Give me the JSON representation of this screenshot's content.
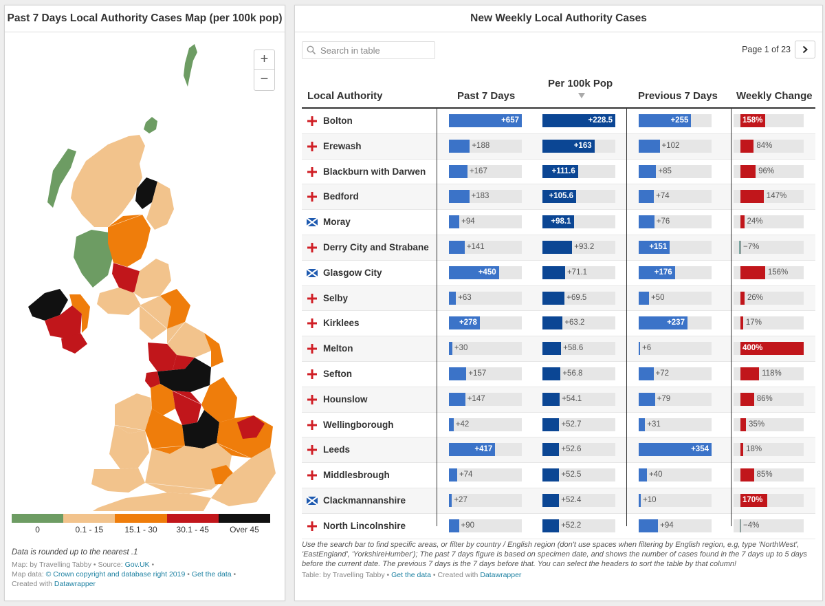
{
  "left_panel": {
    "title": "Past 7 Days Local Authority Cases Map (per 100k pop)",
    "zoom_in": "+",
    "zoom_out": "−",
    "legend": [
      {
        "label": "0",
        "color": "#6d9c63"
      },
      {
        "label": "0.1 - 15",
        "color": "#f2c38c"
      },
      {
        "label": "15.1 - 30",
        "color": "#ef7d0b"
      },
      {
        "label": "30.1 - 45",
        "color": "#c1161b"
      },
      {
        "label": "Over 45",
        "color": "#111111"
      }
    ],
    "note": "Data is rounded up to the nearest .1",
    "credit_map_by": "Map: by Travelling Tabby • Source: ",
    "credit_source_link": "Gov.UK",
    "credit_sep": " •",
    "credit_mapdata_prefix": "Map data: ",
    "credit_mapdata_link": "© Crown copyright and database right 2019",
    "credit_dot1": " • ",
    "credit_getdata": "Get the data",
    "credit_dot2": " •",
    "credit_created": "Created with ",
    "credit_datawrapper": "Datawrapper"
  },
  "right_panel": {
    "title": "New Weekly Local Authority Cases",
    "search_placeholder": "Search in table",
    "page_label": "Page 1 of 23",
    "next_icon": "chevron-right-icon",
    "description": "Use the search bar to find specific areas, or filter by country / English region (don't use spaces when filtering by English region, e.g, type 'NorthWest', 'EastEngland', 'YorkshireHumber'); The past 7 days figure is based on specimen date, and shows the number of cases found in the 7 days up to 5 days before the current date. The previous 7 days is the 7 days before that. You can select the headers to sort the table by that column!",
    "credit_table": "Table: by Travelling Tabby • ",
    "credit_getdata": "Get the data",
    "credit_dot": " • Created with ",
    "credit_datawrapper": "Datawrapper"
  },
  "colors": {
    "blue": "#3b73c8",
    "navy": "#0b4694",
    "red": "#c1161b",
    "gray": "#e6e6e6"
  },
  "chart_data": {
    "type": "table",
    "title": "New Weekly Local Authority Cases",
    "columns": [
      "Local Authority",
      "Past 7 Days",
      "Per 100k Pop",
      "Previous 7 Days",
      "Weekly Change"
    ],
    "sort_column": "Per 100k Pop",
    "sort_icon": "sort-down-triangle-icon",
    "rows": [
      {
        "name": "Bolton",
        "country": "england",
        "past7": 657,
        "per100k": 228.5,
        "prev7": 255,
        "change": 158,
        "past7_label": "+657",
        "per100k_label": "+228.5",
        "prev7_label": "+255",
        "change_label": "158%"
      },
      {
        "name": "Erewash",
        "country": "england",
        "past7": 188,
        "per100k": 163,
        "prev7": 102,
        "change": 84,
        "past7_label": "+188",
        "per100k_label": "+163",
        "prev7_label": "+102",
        "change_label": "84%"
      },
      {
        "name": "Blackburn with Darwen",
        "country": "england",
        "past7": 167,
        "per100k": 111.6,
        "prev7": 85,
        "change": 96,
        "past7_label": "+167",
        "per100k_label": "+111.6",
        "prev7_label": "+85",
        "change_label": "96%"
      },
      {
        "name": "Bedford",
        "country": "england",
        "past7": 183,
        "per100k": 105.6,
        "prev7": 74,
        "change": 147,
        "past7_label": "+183",
        "per100k_label": "+105.6",
        "prev7_label": "+74",
        "change_label": "147%"
      },
      {
        "name": "Moray",
        "country": "scotland",
        "past7": 94,
        "per100k": 98.1,
        "prev7": 76,
        "change": 24,
        "past7_label": "+94",
        "per100k_label": "+98.1",
        "prev7_label": "+76",
        "change_label": "24%"
      },
      {
        "name": "Derry City and Strabane",
        "country": "northern-ireland",
        "past7": 141,
        "per100k": 93.2,
        "prev7": 151,
        "change": -7,
        "past7_label": "+141",
        "per100k_label": "+93.2",
        "prev7_label": "+151",
        "change_label": "−7%"
      },
      {
        "name": "Glasgow City",
        "country": "scotland",
        "past7": 450,
        "per100k": 71.1,
        "prev7": 176,
        "change": 156,
        "past7_label": "+450",
        "per100k_label": "+71.1",
        "prev7_label": "+176",
        "change_label": "156%"
      },
      {
        "name": "Selby",
        "country": "england",
        "past7": 63,
        "per100k": 69.5,
        "prev7": 50,
        "change": 26,
        "past7_label": "+63",
        "per100k_label": "+69.5",
        "prev7_label": "+50",
        "change_label": "26%"
      },
      {
        "name": "Kirklees",
        "country": "england",
        "past7": 278,
        "per100k": 63.2,
        "prev7": 237,
        "change": 17,
        "past7_label": "+278",
        "per100k_label": "+63.2",
        "prev7_label": "+237",
        "change_label": "17%"
      },
      {
        "name": "Melton",
        "country": "england",
        "past7": 30,
        "per100k": 58.6,
        "prev7": 6,
        "change": 400,
        "past7_label": "+30",
        "per100k_label": "+58.6",
        "prev7_label": "+6",
        "change_label": "400%"
      },
      {
        "name": "Sefton",
        "country": "england",
        "past7": 157,
        "per100k": 56.8,
        "prev7": 72,
        "change": 118,
        "past7_label": "+157",
        "per100k_label": "+56.8",
        "prev7_label": "+72",
        "change_label": "118%"
      },
      {
        "name": "Hounslow",
        "country": "england",
        "past7": 147,
        "per100k": 54.1,
        "prev7": 79,
        "change": 86,
        "past7_label": "+147",
        "per100k_label": "+54.1",
        "prev7_label": "+79",
        "change_label": "86%"
      },
      {
        "name": "Wellingborough",
        "country": "england",
        "past7": 42,
        "per100k": 52.7,
        "prev7": 31,
        "change": 35,
        "past7_label": "+42",
        "per100k_label": "+52.7",
        "prev7_label": "+31",
        "change_label": "35%"
      },
      {
        "name": "Leeds",
        "country": "england",
        "past7": 417,
        "per100k": 52.6,
        "prev7": 354,
        "change": 18,
        "past7_label": "+417",
        "per100k_label": "+52.6",
        "prev7_label": "+354",
        "change_label": "18%"
      },
      {
        "name": "Middlesbrough",
        "country": "england",
        "past7": 74,
        "per100k": 52.5,
        "prev7": 40,
        "change": 85,
        "past7_label": "+74",
        "per100k_label": "+52.5",
        "prev7_label": "+40",
        "change_label": "85%"
      },
      {
        "name": "Clackmannanshire",
        "country": "scotland",
        "past7": 27,
        "per100k": 52.4,
        "prev7": 10,
        "change": 170,
        "past7_label": "+27",
        "per100k_label": "+52.4",
        "prev7_label": "+10",
        "change_label": "170%"
      },
      {
        "name": "North Lincolnshire",
        "country": "england",
        "past7": 90,
        "per100k": 52.2,
        "prev7": 94,
        "change": -4,
        "past7_label": "+90",
        "per100k_label": "+52.2",
        "prev7_label": "+94",
        "change_label": "−4%"
      }
    ],
    "scales": {
      "past7_max": 657,
      "per100k_max": 228.5,
      "prev7_max": 354,
      "change_max": 400
    }
  }
}
